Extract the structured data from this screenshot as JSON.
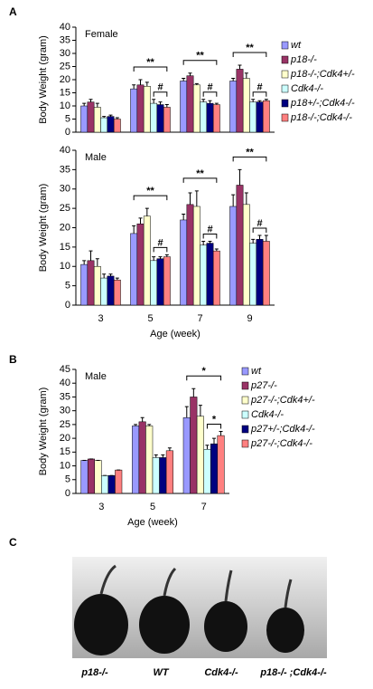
{
  "panels": [
    "A",
    "B",
    "C"
  ],
  "photo_labels": [
    "p18-/-",
    "WT",
    "Cdk4-/-",
    "p18-/- ;Cdk4-/-"
  ],
  "chart_data": [
    {
      "type": "bar",
      "subtitle": "Female",
      "ylabel": "Body Weight (gram)",
      "categories": [
        null,
        null,
        null,
        null
      ],
      "ylim": [
        0,
        40
      ],
      "yticks": [
        0,
        5,
        10,
        15,
        20,
        25,
        30,
        35,
        40
      ],
      "annotations": [
        "**",
        "#",
        "**",
        "#",
        "**",
        "#"
      ],
      "series": [
        {
          "name": "wt",
          "color": "#9999ff",
          "values": [
            10,
            16.5,
            19.5,
            19.5
          ],
          "errors": [
            1,
            1.5,
            1,
            1
          ]
        },
        {
          "name": "p18-/-",
          "color": "#993366",
          "values": [
            11.5,
            18,
            21.5,
            24
          ],
          "errors": [
            1,
            2,
            1,
            1.5
          ]
        },
        {
          "name": "p18-/-;Cdk4+/-",
          "color": "#ffffcc",
          "values": [
            9.5,
            17.5,
            18,
            20.5
          ],
          "errors": [
            1.5,
            1.5,
            0.5,
            2
          ]
        },
        {
          "name": "Cdk4-/-",
          "color": "#ccffff",
          "values": [
            5.5,
            11,
            11.5,
            11.5
          ],
          "errors": [
            0.5,
            1.5,
            1,
            1
          ]
        },
        {
          "name": "p18+/-;Cdk4-/-",
          "color": "#000080",
          "values": [
            6,
            10.5,
            11,
            11.5
          ],
          "errors": [
            0.5,
            1,
            1,
            0.5
          ]
        },
        {
          "name": "p18-/-;Cdk4-/-",
          "color": "#ff8080",
          "values": [
            5,
            9.5,
            10.5,
            12
          ],
          "errors": [
            0.5,
            1,
            0.5,
            0.5
          ]
        }
      ]
    },
    {
      "type": "bar",
      "subtitle": "Male",
      "ylabel": "Body Weight (gram)",
      "xlabel": "Age (week)",
      "categories": [
        "3",
        "5",
        "7",
        "9"
      ],
      "ylim": [
        0,
        40
      ],
      "yticks": [
        0,
        5,
        10,
        15,
        20,
        25,
        30,
        35,
        40
      ],
      "annotations": [
        "**",
        "#",
        "**",
        "#",
        "**",
        "#"
      ],
      "series": [
        {
          "color": "#9999ff",
          "values": [
            10.5,
            18.5,
            22,
            25.5
          ],
          "errors": [
            1,
            2,
            1.5,
            3
          ]
        },
        {
          "color": "#993366",
          "values": [
            11.5,
            21,
            26,
            31
          ],
          "errors": [
            2.5,
            1.5,
            3,
            4
          ]
        },
        {
          "color": "#ffffcc",
          "values": [
            10,
            23,
            25.5,
            26
          ],
          "errors": [
            2,
            2,
            4,
            3
          ]
        },
        {
          "color": "#ccffff",
          "values": [
            7,
            11.5,
            15.5,
            16
          ],
          "errors": [
            1,
            1,
            1,
            1
          ]
        },
        {
          "color": "#000080",
          "values": [
            7.5,
            12,
            16,
            17
          ],
          "errors": [
            0.5,
            0.5,
            0.5,
            1
          ]
        },
        {
          "color": "#ff8080",
          "values": [
            6.5,
            12.5,
            14,
            16.5
          ],
          "errors": [
            0.5,
            0.5,
            0.5,
            1.5
          ]
        }
      ]
    },
    {
      "type": "bar",
      "subtitle": "Male",
      "ylabel": "Body Weight (gram)",
      "xlabel": "Age (week)",
      "categories": [
        "3",
        "5",
        "7"
      ],
      "ylim": [
        0,
        45
      ],
      "yticks": [
        0,
        5,
        10,
        15,
        20,
        25,
        30,
        35,
        40,
        45
      ],
      "annotations": [
        "*",
        "*"
      ],
      "series": [
        {
          "name": "wt",
          "color": "#9999ff",
          "values": [
            12,
            24.5,
            27.5
          ],
          "errors": [
            0,
            0.5,
            4
          ]
        },
        {
          "name": "p27-/-",
          "color": "#993366",
          "values": [
            12.5,
            26,
            35
          ],
          "errors": [
            0,
            1.5,
            3
          ]
        },
        {
          "name": "p27-/-;Cdk4+/-",
          "color": "#ffffcc",
          "values": [
            12,
            24.5,
            28
          ],
          "errors": [
            0,
            0.5,
            4
          ]
        },
        {
          "name": "Cdk4-/-",
          "color": "#ccffff",
          "values": [
            6.5,
            13,
            16
          ],
          "errors": [
            0,
            1,
            1.5
          ]
        },
        {
          "name": "p27+/-;Cdk4-/-",
          "color": "#000080",
          "values": [
            6.5,
            13,
            18
          ],
          "errors": [
            0,
            1,
            2
          ]
        },
        {
          "name": "p27-/-;Cdk4-/-",
          "color": "#ff8080",
          "values": [
            8.5,
            15.5,
            21
          ],
          "errors": [
            0,
            1,
            1.5
          ]
        }
      ]
    }
  ]
}
